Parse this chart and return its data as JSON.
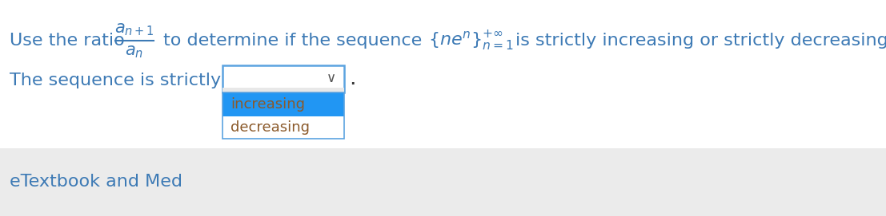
{
  "bg_color": "#ffffff",
  "bottom_bar_color": "#ebebeb",
  "text_color": "#3d7ab5",
  "dropdown_border_color": "#5ba3e0",
  "dropdown_bg": "#ffffff",
  "dropdown_selected_color": "#2196f3",
  "dropdown_text_color": "#8b5a2b",
  "option1": "increasing",
  "option2": "decreasing",
  "etextbook_text": "eTextbook and Med",
  "sequence_label": "The sequence is strictly",
  "figwidth": 11.07,
  "figheight": 2.71,
  "dpi": 100
}
